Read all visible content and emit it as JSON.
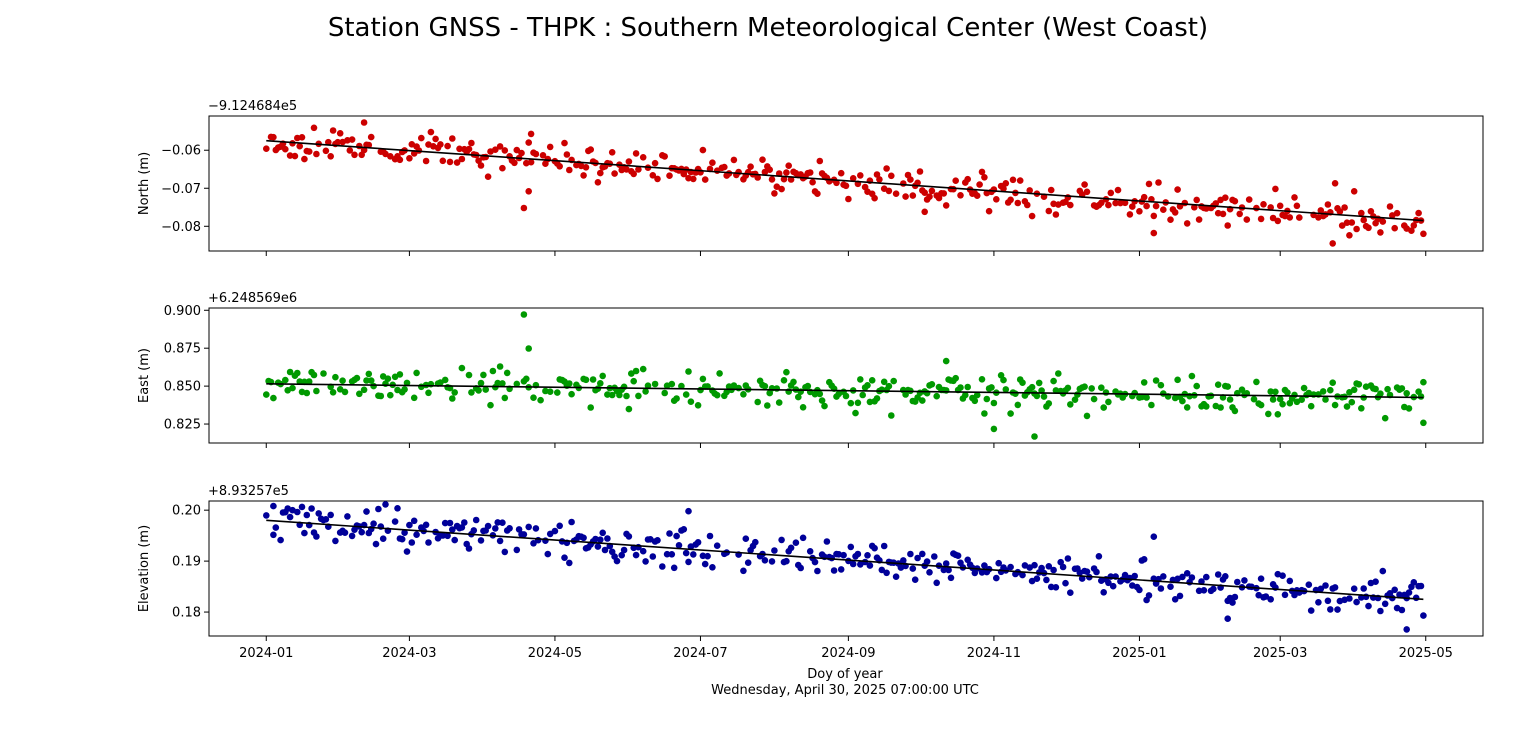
{
  "figure": {
    "title": "Station GNSS - THPK : Southern Meteorological Center (West Coast)",
    "xlabel": "Doy of year",
    "timestamp": "Wednesday, April 30, 2025 07:00:00 UTC",
    "x_tick_labels": [
      "2024-01",
      "2024-03",
      "2024-05",
      "2024-07",
      "2024-09",
      "2024-11",
      "2025-01",
      "2025-03",
      "2025-05"
    ]
  },
  "chart_data": [
    {
      "type": "scatter",
      "name": "North",
      "ylabel": "North (m)",
      "offset_label": "−9.124684e5",
      "color": "#cc0000",
      "trend_color": "#000000",
      "xlim": [
        "2023-12-08",
        "2025-05-25"
      ],
      "ylim": [
        -0.0865,
        -0.051
      ],
      "yticks": [
        -0.08,
        -0.07,
        -0.06
      ],
      "ytick_labels": [
        "−0.08",
        "−0.07",
        "−0.06"
      ],
      "xrange": [
        "2024-01-01",
        "2025-04-30"
      ],
      "trend": [
        -0.0575,
        -0.0785
      ],
      "noise": 0.0022,
      "seed": 11,
      "outliers": [
        [
          "2024-04-18",
          -0.0752
        ],
        [
          "2024-04-20",
          -0.0708
        ],
        [
          "2024-04-21",
          -0.0557
        ],
        [
          "2025-01-07",
          -0.0818
        ],
        [
          "2025-03-23",
          -0.0845
        ],
        [
          "2024-02-11",
          -0.0527
        ],
        [
          "2024-10-03",
          -0.0762
        ]
      ]
    },
    {
      "type": "scatter",
      "name": "East",
      "ylabel": "East (m)",
      "offset_label": "+6.248569e6",
      "color": "#009900",
      "trend_color": "#000000",
      "xlim": [
        "2023-12-08",
        "2025-05-25"
      ],
      "ylim": [
        0.8125,
        0.9015
      ],
      "yticks": [
        0.825,
        0.85,
        0.875,
        0.9
      ],
      "ytick_labels": [
        "0.825",
        "0.850",
        "0.875",
        "0.900"
      ],
      "xrange": [
        "2024-01-01",
        "2025-04-30"
      ],
      "trend": [
        0.8515,
        0.8425
      ],
      "noise": 0.0055,
      "seed": 23,
      "outliers": [
        [
          "2024-04-18",
          0.8972
        ],
        [
          "2024-04-20",
          0.8748
        ],
        [
          "2024-11-01",
          0.8218
        ],
        [
          "2024-11-18",
          0.8168
        ],
        [
          "2024-10-12",
          0.8665
        ],
        [
          "2025-04-30",
          0.8258
        ]
      ]
    },
    {
      "type": "scatter",
      "name": "Elevation",
      "ylabel": "Elevation (m)",
      "offset_label": "+8.93257e5",
      "color": "#000099",
      "trend_color": "#000000",
      "xlim": [
        "2023-12-08",
        "2025-05-25"
      ],
      "ylim": [
        0.1753,
        0.2018
      ],
      "yticks": [
        0.18,
        0.19,
        0.2
      ],
      "ytick_labels": [
        "0.18",
        "0.19",
        "0.20"
      ],
      "xrange": [
        "2024-01-01",
        "2025-04-30"
      ],
      "trend": [
        0.198,
        0.1825
      ],
      "noise": 0.0018,
      "seed": 37,
      "outliers": [
        [
          "2024-06-26",
          0.1998
        ],
        [
          "2025-01-07",
          0.1948
        ],
        [
          "2025-02-07",
          0.1787
        ],
        [
          "2025-04-23",
          0.1766
        ],
        [
          "2024-01-04",
          0.2008
        ],
        [
          "2025-04-30",
          0.1793
        ]
      ]
    }
  ]
}
